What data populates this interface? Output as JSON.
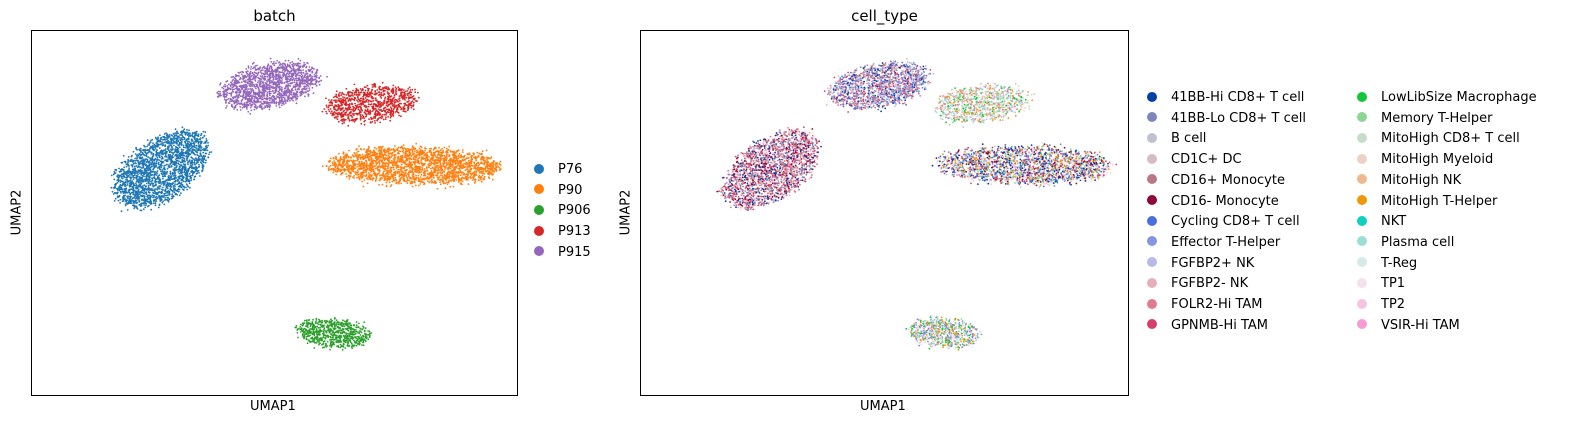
{
  "chart_data": [
    {
      "type": "scatter",
      "title": "batch",
      "xlabel": "UMAP1",
      "ylabel": "UMAP2",
      "grid": false,
      "legend_placement": "right",
      "legend_columns": 1,
      "series": [
        {
          "name": "P76",
          "color": "#1f77b4",
          "cluster": {
            "cx": 0.44,
            "cy": 0.62,
            "rx": 0.13,
            "ry": 0.24,
            "rot": -34,
            "n": 2200
          }
        },
        {
          "name": "P90",
          "color": "#ff7f0e",
          "cluster": {
            "cx": 0.91,
            "cy": 0.63,
            "rx": 0.32,
            "ry": 0.1,
            "rot": -2,
            "n": 2200
          }
        },
        {
          "name": "P906",
          "color": "#2ca02c",
          "cluster": {
            "cx": 0.76,
            "cy": 0.17,
            "rx": 0.13,
            "ry": 0.075,
            "rot": -10,
            "n": 700
          }
        },
        {
          "name": "P913",
          "color": "#d62728",
          "cluster": {
            "cx": 0.83,
            "cy": 0.8,
            "rx": 0.17,
            "ry": 0.095,
            "rot": 12,
            "n": 900
          }
        },
        {
          "name": "P915",
          "color": "#9467bd",
          "cluster": {
            "cx": 0.64,
            "cy": 0.85,
            "rx": 0.19,
            "ry": 0.11,
            "rot": 22,
            "n": 1500
          }
        }
      ],
      "xlim": [
        0.2,
        1.1
      ],
      "ylim": [
        0.0,
        1.0
      ]
    },
    {
      "type": "scatter",
      "title": "cell_type",
      "xlabel": "UMAP1",
      "ylabel": "UMAP2",
      "grid": false,
      "legend_placement": "right",
      "legend_columns": 2,
      "series": [
        {
          "name": "41BB-Hi CD8+ T cell",
          "color": "#023fa5"
        },
        {
          "name": "41BB-Lo CD8+ T cell",
          "color": "#7d87b9"
        },
        {
          "name": "B cell",
          "color": "#bec1d4"
        },
        {
          "name": "CD1C+ DC",
          "color": "#d6bcc0"
        },
        {
          "name": "CD16+ Monocyte",
          "color": "#bb7784"
        },
        {
          "name": "CD16- Monocyte",
          "color": "#8e063b"
        },
        {
          "name": "Cycling CD8+ T cell",
          "color": "#4a6fe3"
        },
        {
          "name": "Effector T-Helper",
          "color": "#8595e1"
        },
        {
          "name": "FGFBP2+ NK",
          "color": "#b5bbe3"
        },
        {
          "name": "FGFBP2- NK",
          "color": "#e6afb9"
        },
        {
          "name": "FOLR2-Hi TAM",
          "color": "#e07b91"
        },
        {
          "name": "GPNMB-Hi TAM",
          "color": "#d33f6a"
        },
        {
          "name": "LowLibSize Macrophage",
          "color": "#11c638"
        },
        {
          "name": "Memory T-Helper",
          "color": "#8dd593"
        },
        {
          "name": "MitoHigh CD8+ T cell",
          "color": "#c6dec7"
        },
        {
          "name": "MitoHigh Myeloid",
          "color": "#ead3c6"
        },
        {
          "name": "MitoHigh NK",
          "color": "#f0b98d"
        },
        {
          "name": "MitoHigh T-Helper",
          "color": "#ef9708"
        },
        {
          "name": "NKT",
          "color": "#0fcfc0"
        },
        {
          "name": "Plasma cell",
          "color": "#9cded6"
        },
        {
          "name": "T-Reg",
          "color": "#d5eae7"
        },
        {
          "name": "TP1",
          "color": "#f3e1eb"
        },
        {
          "name": "TP2",
          "color": "#f6c4e1"
        },
        {
          "name": "VSIR-Hi TAM",
          "color": "#f79cd4"
        }
      ],
      "clusters": [
        {
          "cx": 0.44,
          "cy": 0.62,
          "rx": 0.13,
          "ry": 0.24,
          "rot": -34,
          "n": 2200,
          "mix": [
            11,
            10,
            9,
            21,
            4,
            5,
            1,
            0
          ]
        },
        {
          "cx": 0.91,
          "cy": 0.63,
          "rx": 0.32,
          "ry": 0.1,
          "rot": -2,
          "n": 2200,
          "mix": [
            22,
            21,
            0,
            5,
            11,
            1,
            6,
            13,
            17,
            19
          ]
        },
        {
          "cx": 0.76,
          "cy": 0.17,
          "rx": 0.13,
          "ry": 0.075,
          "rot": -10,
          "n": 700,
          "mix": [
            22,
            21,
            13,
            12,
            1,
            7,
            19,
            17
          ]
        },
        {
          "cx": 0.83,
          "cy": 0.8,
          "rx": 0.17,
          "ry": 0.095,
          "rot": 12,
          "n": 900,
          "mix": [
            16,
            17,
            19,
            8,
            13,
            15,
            12,
            14,
            2,
            21,
            10
          ]
        },
        {
          "cx": 0.64,
          "cy": 0.85,
          "rx": 0.19,
          "ry": 0.11,
          "rot": 22,
          "n": 1500,
          "mix": [
            0,
            6,
            1,
            11,
            10,
            4,
            7,
            2,
            8,
            3
          ]
        }
      ],
      "xlim": [
        0.2,
        1.1
      ],
      "ylim": [
        0.0,
        1.0
      ]
    }
  ]
}
